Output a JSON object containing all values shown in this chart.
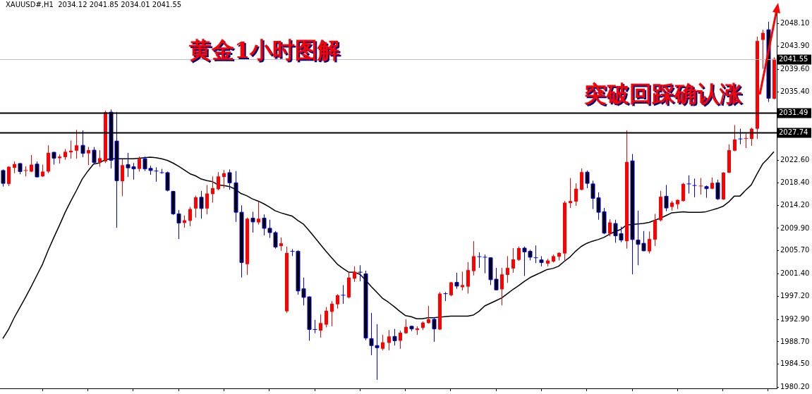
{
  "chart_data": {
    "type": "candlestick",
    "title": "XAUUSD#,H1  2034.12 2041.85 2034.01 2041.55",
    "categories": [
      null,
      null,
      null,
      null,
      null,
      null,
      null,
      null,
      null,
      null,
      null,
      null,
      null,
      null,
      null,
      null,
      null,
      null,
      null,
      null,
      null,
      null,
      null,
      null,
      null,
      null,
      null,
      null,
      null,
      null,
      null,
      null,
      null,
      null,
      null,
      null,
      null,
      null,
      null,
      null,
      null,
      null,
      null,
      null,
      null,
      null,
      null,
      null,
      null,
      null,
      null,
      null,
      null,
      null,
      null,
      null,
      null,
      null,
      null,
      null,
      null,
      null,
      null,
      null,
      null,
      null,
      null,
      null,
      null,
      null,
      null,
      null,
      null,
      null,
      null,
      null,
      null,
      null,
      null,
      null,
      null,
      null,
      null,
      null,
      null,
      null,
      null,
      null,
      null,
      null,
      null,
      null,
      null,
      null,
      null,
      null,
      null,
      null,
      null,
      null,
      null,
      null,
      null,
      null,
      null,
      null,
      null,
      null,
      null,
      null,
      null,
      null,
      null,
      null,
      null,
      null,
      null,
      null,
      null,
      null,
      null,
      null,
      null,
      null,
      null,
      null,
      null,
      null,
      null,
      null,
      null,
      null,
      null,
      null,
      null,
      null,
      null
    ],
    "colors": [
      "#000000",
      "#ff0000",
      "#ff0000",
      "#000000",
      "#ff0000",
      "#ff0000",
      "#000000",
      "#ff0000",
      "#ff0000",
      "#000000",
      "#ff0000",
      "#ff0000",
      "#ff0000",
      "#ff0000",
      "#000000",
      "#ff0000",
      "#000000",
      "#ff0000",
      "#ff0000",
      "#000000",
      "#000000",
      "#ff0000",
      "#000000",
      "#000000",
      "#ff0000",
      "#000000",
      "#000000",
      "#0000ff",
      "#0000ff",
      "#000000",
      "#000000",
      "#000000",
      "#ff0000",
      "#ff0000",
      "#ff0000",
      "#000000",
      "#ff0000",
      "#ff0000",
      "#ff0000",
      "#ff0000",
      "#000000",
      "#000000",
      "#000000",
      "#ff0000",
      "#000000",
      "#ff0000",
      "#000000",
      "#000000",
      "#000000",
      "#ff0000",
      "#ff0000",
      "#0000ff",
      "#000000",
      "#000000",
      "#000000",
      "#0000ff",
      "#ff0000",
      "#ff0000",
      "#ff0000",
      "#ff0000",
      "#0000ff",
      "#ff0000",
      "#ff0000",
      "#000000",
      "#000000",
      "#000000",
      "#000000",
      "#ff0000",
      "#ff0000",
      "#000000",
      "#ff0000",
      "#ff0000",
      "#000000",
      "#ff0000",
      "#ff0000",
      "#ff0000",
      "#000000",
      "#ff0000",
      "#0000ff",
      "#ff0000",
      "#000000",
      "#ff0000",
      "#ff0000",
      "#ff0000",
      "#0000ff",
      "#0000ff",
      "#000000",
      "#000000",
      "#ff0000",
      "#ff0000",
      "#ff0000",
      "#ff0000",
      "#000000",
      "#000000",
      "#0000ff",
      "#000000",
      "#ff0000",
      "#ff0000",
      "#ff0000",
      "#ff0000",
      "#ff0000",
      "#ff0000",
      "#ff0000",
      "#000000",
      "#000000",
      "#000000",
      "#000000",
      "#ff0000",
      "#000000",
      "#000000",
      "#ff0000",
      "#000000",
      "#000000",
      "#000000",
      "#ff0000",
      "#ff0000",
      "#ff0000",
      "#000000",
      "#ff0000",
      "#ff0000",
      "#ff0000",
      "#0000ff",
      "#0000ff",
      "#ff0000",
      "#000000",
      "#ff0000",
      "#000000",
      "#ff0000",
      "#ff0000",
      "#ff0000",
      "#0000ff",
      "#ff0000",
      "#ff0000",
      "#ff0000",
      "#ff0000",
      "#000000",
      "#ff0000"
    ],
    "ohlc": [
      [
        2020.7,
        2020.9,
        2017.7,
        2018.3
      ],
      [
        2018.2,
        2021.5,
        2017.8,
        2021.4
      ],
      [
        2021.2,
        2022.4,
        2020.2,
        2021.9
      ],
      [
        2022.0,
        2022.1,
        2020.0,
        2020.5
      ],
      [
        2020.6,
        2021.5,
        2019.6,
        2020.7
      ],
      [
        2020.5,
        2023.6,
        2020.4,
        2021.8
      ],
      [
        2021.9,
        2022.4,
        2019.4,
        2019.5
      ],
      [
        2019.6,
        2021.8,
        2019.5,
        2020.5
      ],
      [
        2020.5,
        2025.4,
        2020.2,
        2024.0
      ],
      [
        2024.1,
        2024.2,
        2021.8,
        2023.0
      ],
      [
        2023.0,
        2023.7,
        2022.0,
        2023.3
      ],
      [
        2023.2,
        2024.7,
        2022.7,
        2024.2
      ],
      [
        2024.1,
        2026.3,
        2022.9,
        2024.4
      ],
      [
        2024.4,
        2028.3,
        2022.9,
        2025.4
      ],
      [
        2025.4,
        2028.2,
        2023.2,
        2023.9
      ],
      [
        2023.9,
        2025.1,
        2021.7,
        2024.5
      ],
      [
        2024.5,
        2025.1,
        2022.0,
        2022.2
      ],
      [
        2022.2,
        2024.5,
        2021.4,
        2023.0
      ],
      [
        2022.4,
        2031.9,
        2022.1,
        2031.6
      ],
      [
        2031.6,
        2032.1,
        2021.1,
        2022.6
      ],
      [
        2026.2,
        2031.6,
        2010.0,
        2018.8
      ],
      [
        2018.7,
        2022.8,
        2015.9,
        2021.7
      ],
      [
        2021.8,
        2024.0,
        2019.5,
        2021.2
      ],
      [
        2021.4,
        2022.1,
        2019.0,
        2021.0
      ],
      [
        2021.0,
        2023.3,
        2020.5,
        2022.9
      ],
      [
        2022.9,
        2023.3,
        2020.6,
        2021.0
      ],
      [
        2021.1,
        2021.6,
        2019.9,
        2020.7
      ],
      [
        2020.6,
        2021.3,
        2018.6,
        2020.5
      ],
      [
        2020.3,
        2021.0,
        2020.1,
        2020.2
      ],
      [
        2020.3,
        2020.5,
        2016.8,
        2017.0
      ],
      [
        2016.8,
        2016.9,
        2012.4,
        2012.6
      ],
      [
        2012.6,
        2013.3,
        2007.9,
        2010.9
      ],
      [
        2010.9,
        2012.3,
        2010.0,
        2011.4
      ],
      [
        2011.3,
        2013.9,
        2010.3,
        2013.5
      ],
      [
        2013.6,
        2016.0,
        2011.9,
        2015.7
      ],
      [
        2015.7,
        2016.9,
        2011.7,
        2013.6
      ],
      [
        2013.6,
        2018.0,
        2012.5,
        2016.4
      ],
      [
        2016.3,
        2019.6,
        2014.7,
        2017.4
      ],
      [
        2017.2,
        2020.4,
        2017.0,
        2019.6
      ],
      [
        2019.5,
        2020.8,
        2017.4,
        2020.2
      ],
      [
        2020.3,
        2020.9,
        2017.1,
        2018.4
      ],
      [
        2018.4,
        2020.6,
        2011.1,
        2012.9
      ],
      [
        2012.9,
        2014.2,
        2000.7,
        2003.5
      ],
      [
        2003.2,
        2011.9,
        2001.2,
        2011.7
      ],
      [
        2011.8,
        2013.0,
        2009.1,
        2011.1
      ],
      [
        2011.0,
        2014.9,
        2010.6,
        2011.7
      ],
      [
        2011.8,
        2012.5,
        2008.6,
        2009.9
      ],
      [
        2009.9,
        2011.5,
        2008.1,
        2009.1
      ],
      [
        2009.1,
        2009.4,
        2006.1,
        2006.4
      ],
      [
        2006.6,
        2008.2,
        2005.7,
        2007.1
      ],
      [
        1994.4,
        2006.5,
        1994.1,
        2005.3
      ],
      [
        2005.6,
        2006.0,
        2004.7,
        2005.5
      ],
      [
        2005.6,
        2005.8,
        1997.5,
        1998.2
      ],
      [
        1998.6,
        2000.7,
        1995.5,
        1997.0
      ],
      [
        1997.1,
        1997.2,
        1988.9,
        1991.0
      ],
      [
        1991.0,
        1992.8,
        1990.3,
        1990.9
      ],
      [
        1990.8,
        1993.8,
        1989.5,
        1992.2
      ],
      [
        1991.9,
        1995.2,
        1991.4,
        1994.5
      ],
      [
        1994.3,
        1996.3,
        1991.6,
        1995.8
      ],
      [
        1995.7,
        1997.6,
        1994.9,
        1997.4
      ],
      [
        1997.4,
        1999.3,
        1995.8,
        1997.3
      ],
      [
        1997.0,
        2001.8,
        1996.8,
        2000.7
      ],
      [
        2000.5,
        2002.8,
        1999.9,
        2001.8
      ],
      [
        2001.7,
        2003.0,
        2000.0,
        2001.5
      ],
      [
        2001.4,
        2002.0,
        1989.0,
        1989.4
      ],
      [
        1989.3,
        1994.1,
        1986.2,
        1988.0
      ],
      [
        1988.0,
        1992.0,
        1981.6,
        1987.6
      ],
      [
        1987.4,
        1990.0,
        1987.1,
        1988.6
      ],
      [
        1988.5,
        1990.9,
        1987.1,
        1989.7
      ],
      [
        1989.7,
        1991.1,
        1988.0,
        1988.9
      ],
      [
        1988.9,
        1990.8,
        1987.4,
        1990.4
      ],
      [
        1990.3,
        1992.9,
        1990.2,
        1991.5
      ],
      [
        1991.6,
        1991.7,
        1990.7,
        1991.1
      ],
      [
        1990.9,
        1991.6,
        1990.0,
        1991.2
      ],
      [
        1991.3,
        1992.5,
        1990.9,
        1992.3
      ],
      [
        1992.2,
        1995.4,
        1992.1,
        1992.9
      ],
      [
        1992.9,
        1993.3,
        1988.7,
        1991.1
      ],
      [
        1991.0,
        1998.0,
        1990.9,
        1997.7
      ],
      [
        1997.7,
        1998.0,
        1996.3,
        1997.6
      ],
      [
        1997.4,
        1999.9,
        1997.2,
        1999.8
      ],
      [
        1999.8,
        2001.6,
        1998.6,
        1999.1
      ],
      [
        1998.9,
        2001.8,
        1998.3,
        1999.3
      ],
      [
        1999.0,
        2003.6,
        1997.7,
        2002.1
      ],
      [
        2001.9,
        2007.5,
        2001.1,
        2004.7
      ],
      [
        2004.6,
        2005.4,
        2002.5,
        2004.5
      ],
      [
        2004.5,
        2005.0,
        2001.5,
        2004.4
      ],
      [
        2004.4,
        2004.5,
        1999.3,
        2000.3
      ],
      [
        2000.4,
        2002.5,
        1998.3,
        1998.4
      ],
      [
        1998.5,
        2002.5,
        1995.5,
        2001.3
      ],
      [
        2001.2,
        2004.7,
        1999.7,
        2002.5
      ],
      [
        2002.4,
        2006.2,
        2001.6,
        2004.1
      ],
      [
        2004.0,
        2006.5,
        2003.8,
        2006.2
      ],
      [
        2006.2,
        2006.5,
        2001.0,
        2005.5
      ],
      [
        2005.6,
        2005.9,
        2003.9,
        2004.5
      ],
      [
        2004.4,
        2006.7,
        2003.4,
        2004.3
      ],
      [
        2004.0,
        2004.7,
        2002.8,
        2003.5
      ],
      [
        2003.3,
        2004.2,
        2002.8,
        2003.9
      ],
      [
        2003.7,
        2005.0,
        2003.5,
        2004.7
      ],
      [
        2004.6,
        2005.4,
        2003.9,
        2005.3
      ],
      [
        2005.2,
        2015.0,
        2003.8,
        2014.7
      ],
      [
        2014.6,
        2019.3,
        2013.7,
        2015.0
      ],
      [
        2014.9,
        2018.3,
        2014.1,
        2017.3
      ],
      [
        2017.1,
        2021.1,
        2017.0,
        2020.4
      ],
      [
        2020.4,
        2020.7,
        2017.4,
        2018.3
      ],
      [
        2018.2,
        2018.8,
        2013.5,
        2015.5
      ],
      [
        2015.6,
        2016.6,
        2011.5,
        2012.9
      ],
      [
        2013.0,
        2013.7,
        2008.8,
        2009.0
      ],
      [
        2008.9,
        2011.6,
        2008.4,
        2011.0
      ],
      [
        2010.8,
        2011.5,
        2007.2,
        2008.5
      ],
      [
        2008.9,
        2010.2,
        2007.3,
        2007.7
      ],
      [
        2007.5,
        2028.2,
        2006.1,
        2022.3
      ],
      [
        2022.5,
        2023.8,
        2001.3,
        2007.8
      ],
      [
        2007.7,
        2013.2,
        2003.0,
        2006.9
      ],
      [
        2007.1,
        2009.4,
        2005.6,
        2005.7
      ],
      [
        2005.6,
        2009.3,
        2005.2,
        2007.9
      ],
      [
        2007.8,
        2012.6,
        2006.6,
        2011.4
      ],
      [
        2011.4,
        2016.9,
        2011.2,
        2015.8
      ],
      [
        2015.9,
        2018.0,
        2013.1,
        2013.7
      ],
      [
        2013.9,
        2015.0,
        2013.2,
        2014.7
      ],
      [
        2014.4,
        2015.3,
        2013.5,
        2015.2
      ],
      [
        2015.0,
        2018.4,
        2014.9,
        2018.2
      ],
      [
        2018.2,
        2019.8,
        2016.4,
        2018.0
      ],
      [
        2017.9,
        2019.2,
        2015.7,
        2017.8
      ],
      [
        2017.7,
        2019.3,
        2016.2,
        2017.8
      ],
      [
        2017.7,
        2017.9,
        2015.6,
        2017.3
      ],
      [
        2017.3,
        2019.4,
        2017.2,
        2018.4
      ],
      [
        2018.4,
        2019.0,
        2015.2,
        2015.4
      ],
      [
        2015.3,
        2020.4,
        2015.2,
        2020.3
      ],
      [
        2020.3,
        2025.6,
        2020.2,
        2024.5
      ],
      [
        2024.4,
        2029.2,
        2024.3,
        2026.5
      ],
      [
        2026.6,
        2028.5,
        2025.6,
        2026.5
      ],
      [
        2026.6,
        2027.6,
        2024.9,
        2026.7
      ],
      [
        2026.6,
        2028.7,
        2025.3,
        2028.5
      ],
      [
        2028.5,
        2045.7,
        2026.6,
        2044.9
      ],
      [
        2045.1,
        2047.0,
        2039.7,
        2046.4
      ],
      [
        2047.0,
        2048.5,
        2033.5,
        2034.2
      ],
      [
        2034.12,
        2041.85,
        2034.01,
        2041.55
      ]
    ],
    "series": [
      {
        "type": "line",
        "color": "#000000",
        "values": [
          1989.3,
          1991.0,
          1993.2,
          1995.1,
          1997.0,
          1999.0,
          2001.1,
          2003.2,
          2005.8,
          2008.2,
          2010.5,
          2012.9,
          2015.0,
          2017.0,
          2019.1,
          2020.6,
          2021.9,
          2022.1,
          2022.7,
          2022.9,
          2022.9,
          2022.9,
          2022.9,
          2022.9,
          2023.0,
          2023.1,
          2023.2,
          2023.1,
          2022.9,
          2022.6,
          2022.1,
          2021.5,
          2020.8,
          2020.1,
          2019.7,
          2019.1,
          2018.8,
          2018.6,
          2018.0,
          2017.9,
          2017.7,
          2017.2,
          2016.4,
          2016.0,
          2015.4,
          2015.0,
          2014.5,
          2013.9,
          2013.2,
          2012.8,
          2012.5,
          2012.2,
          2011.4,
          2010.7,
          2009.5,
          2008.2,
          2006.9,
          2005.6,
          2004.4,
          2003.2,
          2002.4,
          2001.7,
          2001.7,
          2001.3,
          2000.2,
          1999.0,
          1997.9,
          1996.8,
          1996.1,
          1995.3,
          1994.4,
          1993.6,
          1993.4,
          1993.0,
          1993.0,
          1993.2,
          1993.2,
          1993.3,
          1993.4,
          1993.5,
          1993.5,
          1993.5,
          1993.5,
          1993.7,
          1994.4,
          1995.4,
          1995.9,
          1996.4,
          1996.9,
          1997.7,
          1998.5,
          1999.2,
          2000.0,
          2000.7,
          2001.2,
          2001.7,
          2002.2,
          2002.4,
          2002.8,
          2003.7,
          2004.5,
          2005.6,
          2006.5,
          2007.1,
          2007.5,
          2007.8,
          2008.2,
          2008.8,
          2009.3,
          2009.7,
          2010.5,
          2010.6,
          2010.7,
          2010.8,
          2011.0,
          2011.4,
          2011.8,
          2012.3,
          2012.8,
          2012.9,
          2013.0,
          2012.9,
          2012.9,
          2012.9,
          2013.0,
          2013.3,
          2013.6,
          2014.0,
          2014.8,
          2015.9,
          2015.9,
          2017.0,
          2018.0,
          2020.0,
          2021.9,
          2023.0,
          2024.2
        ]
      }
    ],
    "ylim": [
      1980.0,
      2051.5
    ],
    "yticks": [
      {
        "value": 1980.2,
        "label": "1980.20"
      },
      {
        "value": 1984.5,
        "label": "1984.50"
      },
      {
        "value": 1988.7,
        "label": "1988.70"
      },
      {
        "value": 1992.9,
        "label": "1992.90"
      },
      {
        "value": 1997.2,
        "label": "1997.20"
      },
      {
        "value": 2001.4,
        "label": "2001.40"
      },
      {
        "value": 2005.7,
        "label": "2005.70"
      },
      {
        "value": 2009.9,
        "label": "2009.90"
      },
      {
        "value": 2014.2,
        "label": "2014.20"
      },
      {
        "value": 2018.4,
        "label": "2018.40"
      },
      {
        "value": 2022.6,
        "label": "2022.60"
      },
      {
        "value": 2035.4,
        "label": "2035.40"
      },
      {
        "value": 2039.6,
        "label": "2039.60"
      },
      {
        "value": 2043.9,
        "label": "2043.90"
      },
      {
        "value": 2048.1,
        "label": "2048.10"
      }
    ],
    "ref_lines": [
      {
        "axis": "y",
        "value": 2031.49,
        "label": "2031.49",
        "color": "#000000"
      },
      {
        "axis": "y",
        "value": 2027.74,
        "label": "2027.74",
        "color": "#000000"
      },
      {
        "axis": "y",
        "value": 2041.55,
        "label": "2041.55",
        "color": "#c0c0c0"
      }
    ],
    "annotations": [
      "黄金1小时图解",
      "突破回踩确认涨"
    ],
    "tick_labels": "y",
    "marker": "none"
  }
}
